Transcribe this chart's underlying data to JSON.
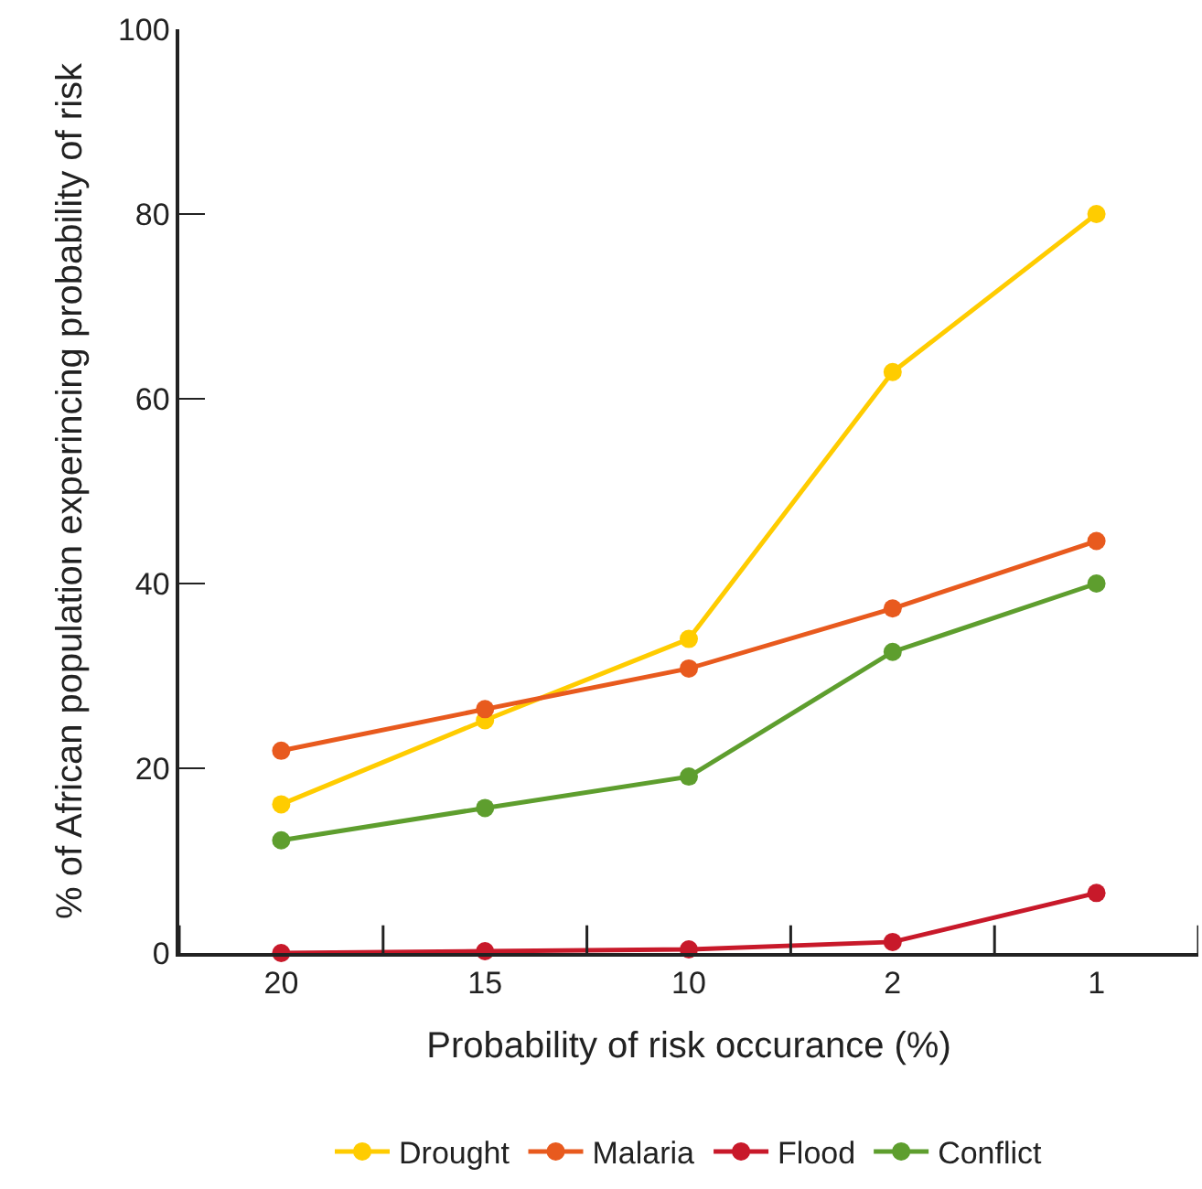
{
  "chart_data": {
    "type": "line",
    "xlabel": "Probability of risk occurance (%)",
    "ylabel": "% of African population experincing probability of risk",
    "categories": [
      "20",
      "15",
      "10",
      "2",
      "1"
    ],
    "series": [
      {
        "name": "Drought",
        "color": "#ffcc00",
        "values": [
          16.1,
          25.2,
          34.0,
          62.9,
          80
        ]
      },
      {
        "name": "Malaria",
        "color": "#e85a1e",
        "values": [
          21.9,
          26.4,
          30.8,
          37.3,
          44.6
        ]
      },
      {
        "name": "Flood",
        "color": "#c8192a",
        "values": [
          0,
          0.2,
          0.4,
          1.2,
          6.5
        ]
      },
      {
        "name": "Conflict",
        "color": "#5e9e2e",
        "values": [
          12.2,
          15.7,
          19.1,
          32.6,
          40
        ]
      }
    ],
    "ylim": [
      0,
      100
    ],
    "yticks": [
      0,
      20,
      40,
      60,
      80,
      100
    ],
    "legend": "bottom",
    "marker": "circle",
    "line_style": "solid"
  }
}
